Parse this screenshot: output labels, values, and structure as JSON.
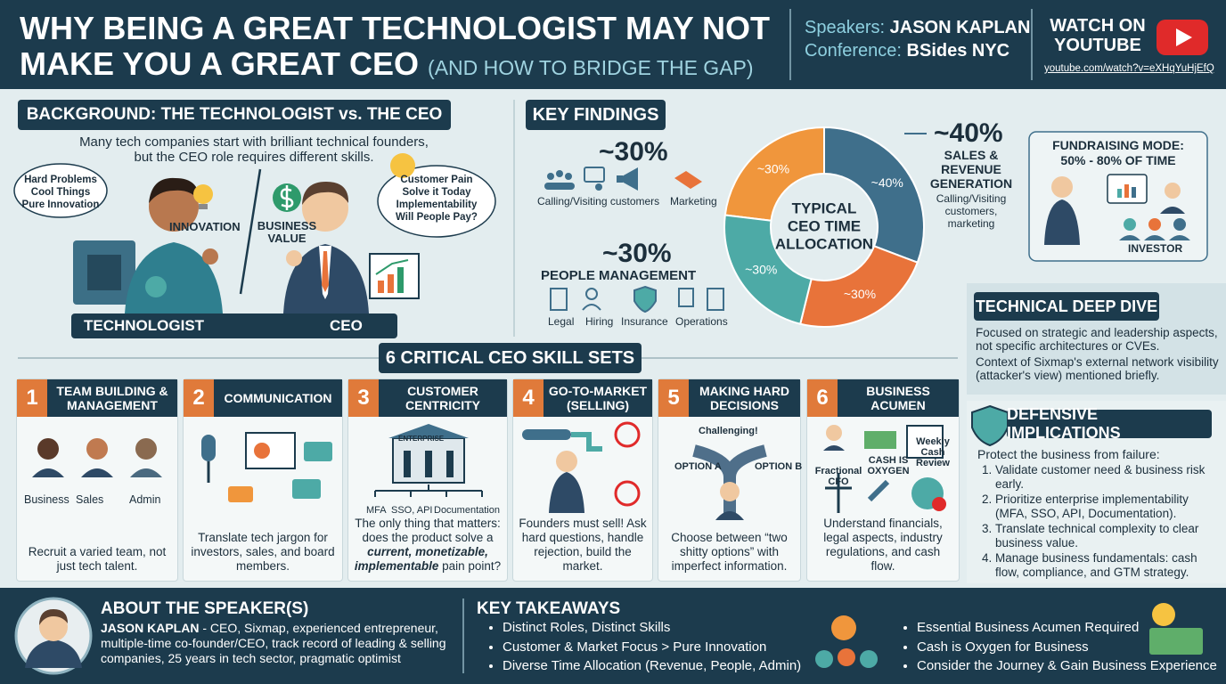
{
  "header": {
    "title_line1": "WHY BEING A GREAT TECHNOLOGIST MAY NOT",
    "title_line2": "MAKE YOU A GREAT CEO",
    "subtitle": "(AND HOW TO BRIDGE THE GAP)",
    "speakers_label": "Speakers:",
    "speakers": "JASON KAPLAN",
    "conference_label": "Conference:",
    "conference": "BSides NYC",
    "watch_line1": "WATCH ON",
    "watch_line2": "YOUTUBE",
    "url": "youtube.com/watch?v=eXHqYuHjEfQ"
  },
  "background": {
    "title": "BACKGROUND: THE TECHNOLOGIST vs. THE CEO",
    "intro_line1": "Many tech companies start with brilliant technical founders,",
    "intro_line2": "but the CEO role requires different skills.",
    "tech_bubble": [
      "Hard Problems",
      "Cool Things",
      "Pure Innovation"
    ],
    "innovation": "INNOVATION",
    "business_value_line1": "BUSINESS",
    "business_value_line2": "VALUE",
    "ceo_bubble": [
      "Customer Pain",
      "Solve it Today",
      "Implementability",
      "Will People Pay?"
    ],
    "technologist": "TECHNOLOGIST",
    "ceo": "CEO"
  },
  "key_findings": {
    "title": "KEY FINDINGS",
    "donut": {
      "center": [
        "TYPICAL",
        "CEO TIME",
        "ALLOCATION"
      ],
      "segments": [
        {
          "value": 30,
          "label": "~30%",
          "color": "#f0963c"
        },
        {
          "value": 40,
          "label": "~40%",
          "color": "#3f6f8b"
        },
        {
          "value": 30,
          "label": "~30%",
          "color": "#e8733a"
        },
        {
          "value": 30,
          "label": "~30%",
          "color": "#4daaa6"
        }
      ]
    },
    "outreach": {
      "pct": "~30%",
      "items": [
        "Calling/Visiting customers",
        "Marketing"
      ]
    },
    "sales": {
      "pct": "~40%",
      "title": [
        "SALES &",
        "REVENUE",
        "GENERATION"
      ],
      "desc": [
        "Calling/Visiting",
        "customers,",
        "marketing"
      ]
    },
    "people": {
      "pct": "~30%",
      "title": "PEOPLE MANAGEMENT",
      "items": [
        "Legal",
        "Hiring",
        "Insurance",
        "Operations"
      ]
    }
  },
  "fundraising": {
    "title_line1": "FUNDRAISING MODE:",
    "title_line2": "50% - 80% OF TIME",
    "investor": "INVESTOR"
  },
  "technical": {
    "title": "TECHNICAL DEEP DIVE",
    "p1": "Focused on strategic and leadership aspects, not specific architectures or CVEs.",
    "p2": "Context of Sixmap's external network visibility (attacker's view) mentioned briefly."
  },
  "defensive": {
    "title": "DEFENSIVE IMPLICATIONS",
    "intro": "Protect the business from failure:",
    "items": [
      "Validate customer need & business risk early.",
      "Prioritize enterprise implementability (MFA, SSO, API, Documentation).",
      "Translate technical complexity to clear business value.",
      "Manage business fundamentals: cash flow, compliance, and GTM strategy."
    ]
  },
  "skills": {
    "title": "6 CRITICAL CEO SKILL SETS",
    "cards": [
      {
        "num": 1,
        "title": "TEAM BUILDING & MANAGEMENT",
        "labels": [
          "Business",
          "Sales",
          "Admin"
        ],
        "text": "Recruit a varied team, not just tech talent."
      },
      {
        "num": 2,
        "title": "COMMUNICATION",
        "labels": [],
        "text": "Translate tech jargon for investors, sales, and board members."
      },
      {
        "num": 3,
        "title": "CUSTOMER CENTRICITY",
        "labels": [
          "ENTERPRISE",
          "MFA",
          "SSO, API",
          "Documentation"
        ],
        "text": "The only thing that matters: does the product solve a ",
        "emphasis": "current, monetizable, implementable",
        "text_after": " pain point?"
      },
      {
        "num": 4,
        "title": "GO-TO-MARKET (SELLING)",
        "labels": [],
        "text": "Founders must sell! Ask hard questions, handle rejection, build the market."
      },
      {
        "num": 5,
        "title": "MAKING HARD DECISIONS",
        "labels": [
          "Challenging!",
          "OPTION A",
          "OPTION B"
        ],
        "text": "Choose between “two shitty options” with imperfect information."
      },
      {
        "num": 6,
        "title": "BUSINESS ACUMEN",
        "labels": [
          "Fractional CFO",
          "CASH IS OXYGEN",
          "Weekly Cash Review"
        ],
        "text": "Understand financials, legal aspects, industry regulations, and cash flow."
      }
    ]
  },
  "footer": {
    "about_title": "ABOUT THE SPEAKER(S)",
    "name": "JASON KAPLAN",
    "bio": " - CEO, Sixmap, experienced entrepreneur, multiple-time co-founder/CEO, track record of leading & selling companies, 25 years in tech sector, pragmatic optimist",
    "takeaways_title": "KEY TAKEAWAYS",
    "takeaways_left": [
      "Distinct Roles, Distinct Skills",
      "Customer & Market Focus > Pure Innovation",
      "Diverse Time Allocation (Revenue, People, Admin)"
    ],
    "takeaways_right": [
      "Essential Business Acumen Required",
      "Cash is Oxygen for Business",
      "Consider the Journey & Gain Business Experience"
    ]
  }
}
